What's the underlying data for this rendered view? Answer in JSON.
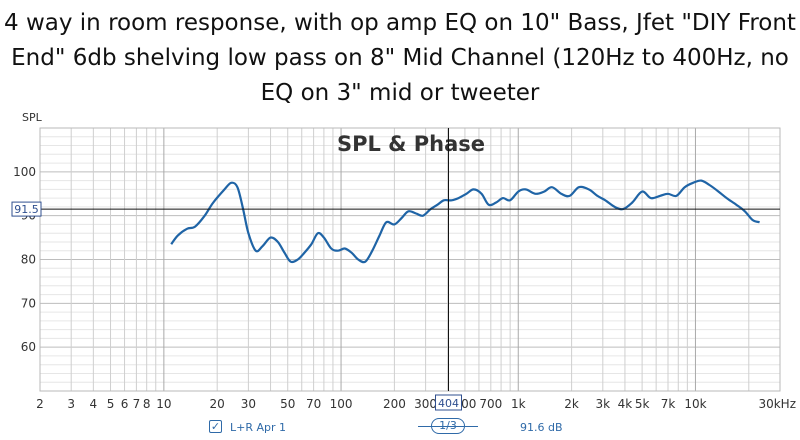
{
  "title": "4 way in room response, with op amp EQ on 10\" Bass, Jfet \"DIY Front End\" 6db shelving low pass on 8\" Mid Channel (120Hz to 400Hz, no EQ on 3\" mid or tweeter",
  "legend": {
    "check": "✓",
    "label": "L+R Apr 1",
    "smoothing": "1/3",
    "readout": "91.6 dB"
  },
  "chart_data": {
    "type": "line",
    "title": "SPL & Phase",
    "ylabel": "SPL",
    "xlabel": "",
    "xscale": "log",
    "xlim": [
      2,
      30000
    ],
    "ylim": [
      50,
      110
    ],
    "grid": true,
    "yticks": [
      60,
      70,
      80,
      90,
      100
    ],
    "ytick_labels": [
      "60",
      "70",
      "80",
      "90",
      "100"
    ],
    "xticks": [
      2,
      3,
      4,
      5,
      6,
      7,
      8,
      10,
      20,
      30,
      50,
      70,
      100,
      200,
      300,
      400,
      500,
      700,
      1000,
      2000,
      3000,
      4000,
      5000,
      7000,
      10000,
      30000
    ],
    "xtick_labels": [
      "2",
      "3",
      "4",
      "5",
      "6",
      "7",
      "8",
      "10",
      "20",
      "30",
      "50",
      "70",
      "100",
      "200",
      "300",
      "400",
      "500",
      "700",
      "1k",
      "2k",
      "3k",
      "4k",
      "5k",
      "7k",
      "10k",
      "30kHz"
    ],
    "cursor": {
      "x": 404,
      "x_label": "404",
      "y": 91.5,
      "y_label": "91.5"
    },
    "series": [
      {
        "name": "L+R Apr 1",
        "color": "#1f64a6",
        "x": [
          11,
          12,
          13.5,
          15,
          17,
          19,
          22,
          24,
          26,
          28,
          30,
          33,
          36,
          40,
          44,
          48,
          52,
          57,
          62,
          68,
          74,
          80,
          88,
          96,
          105,
          115,
          125,
          137,
          150,
          165,
          180,
          200,
          220,
          240,
          265,
          290,
          320,
          350,
          380,
          420,
          460,
          510,
          560,
          620,
          680,
          750,
          820,
          900,
          1000,
          1100,
          1250,
          1400,
          1550,
          1750,
          1950,
          2200,
          2500,
          2800,
          3100,
          3500,
          3900,
          4400,
          5000,
          5600,
          6300,
          7000,
          7800,
          8700,
          9700,
          10800,
          12000,
          13500,
          15000,
          17000,
          19000,
          21000,
          23000
        ],
        "values": [
          83.5,
          85.5,
          87,
          87.5,
          90,
          93,
          96,
          97.5,
          96.5,
          91.5,
          86,
          82,
          83,
          85,
          84,
          81.5,
          79.5,
          80,
          81.5,
          83.5,
          86,
          85,
          82.5,
          82,
          82.5,
          81.5,
          80,
          79.5,
          82,
          85.5,
          88.5,
          88,
          89.5,
          91,
          90.5,
          90,
          91.5,
          92.5,
          93.5,
          93.5,
          94,
          95,
          96,
          95,
          92.5,
          93,
          94,
          93.5,
          95.5,
          96,
          95,
          95.5,
          96.5,
          95,
          94.5,
          96.5,
          96,
          94.5,
          93.5,
          92,
          91.5,
          93,
          95.5,
          94,
          94.5,
          95,
          94.5,
          96.5,
          97.5,
          98,
          97,
          95.5,
          94,
          92.5,
          91,
          89,
          88.5
        ]
      }
    ]
  }
}
